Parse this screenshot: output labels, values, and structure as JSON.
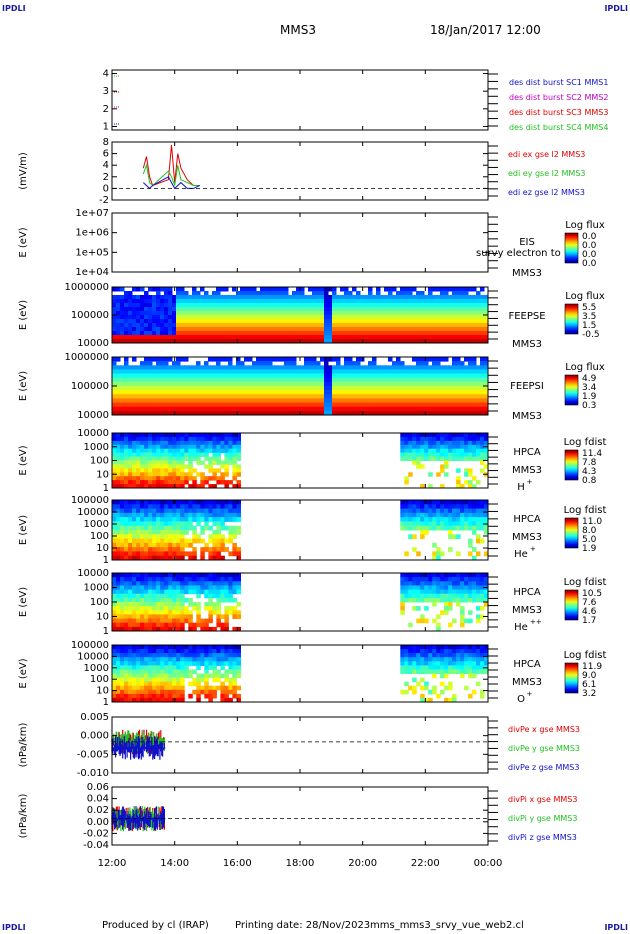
{
  "header": {
    "corner_label": "IPDLI",
    "spacecraft": "MMS3",
    "datetime": "18/Jan/2017 12:00"
  },
  "footer": {
    "produced_by": "Produced by cl (IRAP)",
    "printing_date": "Printing date: 28/Nov/2023",
    "script_name": "mms_mms3_srvy_vue_web2.cl"
  },
  "colors": {
    "red": "#e00000",
    "green": "#22c022",
    "blue": "#1010c8",
    "magenta": "#c000c0",
    "spacecraft_label": "#1a1aa0"
  },
  "chart_data": [
    {
      "type": "line",
      "panel": "burst",
      "ylim": [
        1,
        4
      ],
      "yticks": [
        "1",
        "2",
        "3",
        "4"
      ],
      "legend": [
        "des dist burst SC1 MMS1",
        "des dist burst SC2 MMS2",
        "des dist burst SC3 MMS3",
        "des dist burst SC4 MMS4"
      ],
      "legend_colors": [
        "#1010c8",
        "#c000c0",
        "#e00000",
        "#22c022"
      ]
    },
    {
      "type": "line",
      "panel": "edi",
      "ylabel": "(mV/m)",
      "ylim": [
        -2,
        8
      ],
      "yticks": [
        "-2",
        "0",
        "2",
        "4",
        "6",
        "8"
      ],
      "legend": [
        "edi ex gse l2 MMS3",
        "edi ey gse l2 MMS3",
        "edi ez gse l2 MMS3"
      ],
      "series": [
        {
          "name": "edi ex gse l2 MMS3",
          "x": [
            13.0,
            13.1,
            13.2,
            13.3,
            13.8,
            13.9,
            14.0,
            14.1,
            14.2,
            14.4,
            14.6,
            14.8
          ],
          "values": [
            3.5,
            5.5,
            2.0,
            0.5,
            1.5,
            7.5,
            1.0,
            6.0,
            3.5,
            1.5,
            0.5,
            0.5
          ]
        },
        {
          "name": "edi ey gse l2 MMS3",
          "x": [
            13.0,
            13.1,
            13.2,
            13.3,
            13.8,
            13.9,
            14.0,
            14.1,
            14.2,
            14.4,
            14.6,
            14.8
          ],
          "values": [
            2.5,
            4.0,
            1.0,
            0.5,
            3.0,
            2.0,
            0.5,
            4.0,
            1.5,
            1.0,
            0.5,
            0.5
          ]
        },
        {
          "name": "edi ez gse l2 MMS3",
          "x": [
            13.0,
            13.1,
            13.2,
            13.3,
            13.8,
            13.9,
            14.0,
            14.1,
            14.2,
            14.4,
            14.6,
            14.8
          ],
          "values": [
            1.0,
            0.5,
            0.0,
            0.5,
            2.0,
            1.0,
            0.0,
            0.5,
            1.0,
            0.0,
            0.0,
            0.5
          ]
        }
      ]
    },
    {
      "type": "heatmap",
      "panel": "eis",
      "ylabel": "E (eV)",
      "yticks": [
        "1e+04",
        "1e+05",
        "1e+06",
        "1e+07"
      ],
      "instrument": "EIS",
      "subtitle": "survy electron to",
      "spacecraft": "MMS3",
      "colorbar_title": "Log flux",
      "colorbar_ticks": [
        "0.0",
        "0.0",
        "0.0",
        "0.0"
      ]
    },
    {
      "type": "heatmap",
      "panel": "feepse",
      "ylabel": "E (eV)",
      "yticks": [
        "10000",
        "100000",
        "1000000"
      ],
      "instrument": "FEEPSE",
      "spacecraft": "MMS3",
      "colorbar_title": "Log flux",
      "colorbar_ticks": [
        "5.5",
        "3.5",
        "1.5",
        "-0.5"
      ],
      "data_coverage": [
        12.0,
        24.0
      ]
    },
    {
      "type": "heatmap",
      "panel": "feepsi",
      "ylabel": "E (eV)",
      "yticks": [
        "10000",
        "100000",
        "1000000"
      ],
      "instrument": "FEEPSI",
      "spacecraft": "MMS3",
      "colorbar_title": "Log flux",
      "colorbar_ticks": [
        "4.9",
        "3.4",
        "1.9",
        "0.3"
      ],
      "data_coverage": [
        12.0,
        24.0
      ]
    },
    {
      "type": "heatmap",
      "panel": "hpca-h",
      "ylabel": "E (eV)",
      "yticks": [
        "1",
        "10",
        "100",
        "1000",
        "10000"
      ],
      "instrument": "HPCA",
      "spacecraft": "MMS3",
      "species": "H",
      "species_sup": "+",
      "colorbar_title": "Log fdist",
      "colorbar_ticks": [
        "11.4",
        "7.8",
        "4.3",
        "0.8"
      ],
      "data_coverage": [
        [
          12.0,
          16.1
        ],
        [
          21.2,
          24.0
        ]
      ]
    },
    {
      "type": "heatmap",
      "panel": "hpca-he",
      "ylabel": "E (eV)",
      "yticks": [
        "1",
        "10",
        "100",
        "1000",
        "10000",
        "100000"
      ],
      "instrument": "HPCA",
      "spacecraft": "MMS3",
      "species": "He",
      "species_sup": "+",
      "colorbar_title": "Log fdist",
      "colorbar_ticks": [
        "11.0",
        "8.0",
        "5.0",
        "1.9"
      ],
      "data_coverage": [
        [
          12.0,
          16.1
        ],
        [
          21.2,
          24.0
        ]
      ]
    },
    {
      "type": "heatmap",
      "panel": "hpca-hepp",
      "ylabel": "E (eV)",
      "yticks": [
        "1",
        "10",
        "100",
        "1000",
        "10000"
      ],
      "instrument": "HPCA",
      "spacecraft": "MMS3",
      "species": "He",
      "species_sup": "++",
      "colorbar_title": "Log fdist",
      "colorbar_ticks": [
        "10.5",
        "7.6",
        "4.6",
        "1.7"
      ],
      "data_coverage": [
        [
          12.0,
          16.1
        ],
        [
          21.2,
          24.0
        ]
      ]
    },
    {
      "type": "heatmap",
      "panel": "hpca-o",
      "ylabel": "E (eV)",
      "yticks": [
        "1",
        "10",
        "100",
        "1000",
        "10000",
        "100000"
      ],
      "instrument": "HPCA",
      "spacecraft": "MMS3",
      "species": "O",
      "species_sup": "+",
      "colorbar_title": "Log fdist",
      "colorbar_ticks": [
        "11.9",
        "9.0",
        "6.1",
        "3.2"
      ],
      "data_coverage": [
        [
          12.0,
          16.1
        ],
        [
          21.2,
          24.0
        ]
      ]
    },
    {
      "type": "line",
      "panel": "divpe",
      "ylabel": "(nPa/km)",
      "ylim": [
        -0.01,
        0.008
      ],
      "yticks": [
        "-0.010",
        "-0.005",
        "0.000",
        "0.005"
      ],
      "legend": [
        "divPe x gse MMS3",
        "divPe y gse MMS3",
        "divPe z gse MMS3"
      ],
      "series": [
        {
          "name": "divPe x gse MMS3",
          "x": [
            12.0,
            13.7
          ],
          "values": [
            0.0,
            0.0
          ]
        },
        {
          "name": "divPe y gse MMS3",
          "x": [
            12.0,
            13.7
          ],
          "values": [
            0.0,
            0.0
          ]
        },
        {
          "name": "divPe z gse MMS3",
          "x": [
            12.0,
            13.7
          ],
          "values": [
            -0.002,
            -0.002
          ]
        }
      ]
    },
    {
      "type": "line",
      "panel": "divpi",
      "ylabel": "(nPa/km)",
      "ylim": [
        -0.05,
        0.06
      ],
      "yticks": [
        "-0.04",
        "-0.02",
        "0.00",
        "0.02",
        "0.04",
        "0.06"
      ],
      "legend": [
        "divPi x gse MMS3",
        "divPi y gse MMS3",
        "divPi z gse MMS3"
      ],
      "series": [
        {
          "name": "divPi x gse MMS3",
          "x": [
            12.0,
            13.7
          ],
          "values": [
            0.0,
            0.0
          ]
        },
        {
          "name": "divPi y gse MMS3",
          "x": [
            12.0,
            13.7
          ],
          "values": [
            0.0,
            0.0
          ]
        },
        {
          "name": "divPi z gse MMS3",
          "x": [
            12.0,
            13.7
          ],
          "values": [
            0.0,
            0.0
          ]
        }
      ]
    }
  ],
  "x_axis": {
    "range": [
      12,
      24
    ],
    "ticks": [
      "12:00",
      "14:00",
      "16:00",
      "18:00",
      "20:00",
      "22:00",
      "00:00"
    ],
    "tick_hours": [
      12,
      14,
      16,
      18,
      20,
      22,
      24
    ]
  }
}
